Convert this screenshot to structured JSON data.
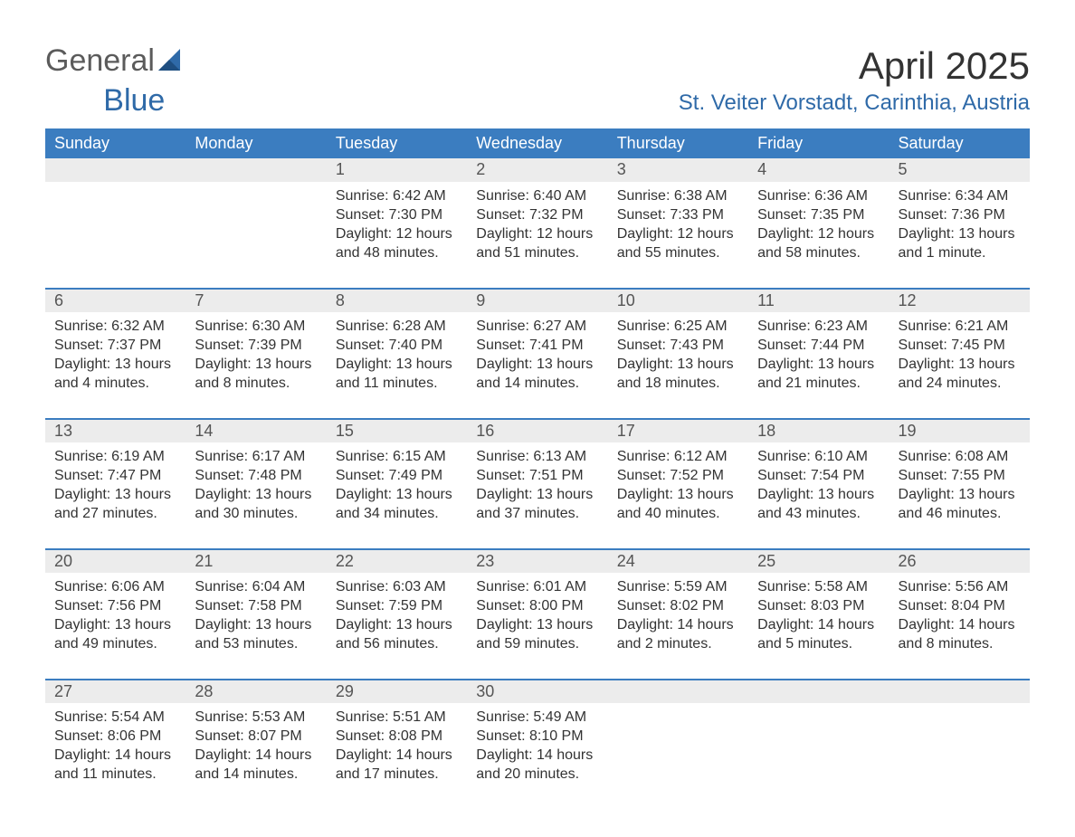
{
  "brand": {
    "word1": "General",
    "word2": "Blue"
  },
  "title": "April 2025",
  "location": "St. Veiter Vorstadt, Carinthia, Austria",
  "colors": {
    "header_bg": "#3b7dc0",
    "header_text": "#ffffff",
    "daynum_bg": "#ececec",
    "accent": "#2f6aa8",
    "text": "#333333"
  },
  "day_headers": [
    "Sunday",
    "Monday",
    "Tuesday",
    "Wednesday",
    "Thursday",
    "Friday",
    "Saturday"
  ],
  "weeks": [
    {
      "nums": [
        "",
        "",
        "1",
        "2",
        "3",
        "4",
        "5"
      ],
      "sunrise": [
        "",
        "",
        "Sunrise: 6:42 AM",
        "Sunrise: 6:40 AM",
        "Sunrise: 6:38 AM",
        "Sunrise: 6:36 AM",
        "Sunrise: 6:34 AM"
      ],
      "sunset": [
        "",
        "",
        "Sunset: 7:30 PM",
        "Sunset: 7:32 PM",
        "Sunset: 7:33 PM",
        "Sunset: 7:35 PM",
        "Sunset: 7:36 PM"
      ],
      "day1": [
        "",
        "",
        "Daylight: 12 hours",
        "Daylight: 12 hours",
        "Daylight: 12 hours",
        "Daylight: 12 hours",
        "Daylight: 13 hours"
      ],
      "day2": [
        "",
        "",
        "and 48 minutes.",
        "and 51 minutes.",
        "and 55 minutes.",
        "and 58 minutes.",
        "and 1 minute."
      ]
    },
    {
      "nums": [
        "6",
        "7",
        "8",
        "9",
        "10",
        "11",
        "12"
      ],
      "sunrise": [
        "Sunrise: 6:32 AM",
        "Sunrise: 6:30 AM",
        "Sunrise: 6:28 AM",
        "Sunrise: 6:27 AM",
        "Sunrise: 6:25 AM",
        "Sunrise: 6:23 AM",
        "Sunrise: 6:21 AM"
      ],
      "sunset": [
        "Sunset: 7:37 PM",
        "Sunset: 7:39 PM",
        "Sunset: 7:40 PM",
        "Sunset: 7:41 PM",
        "Sunset: 7:43 PM",
        "Sunset: 7:44 PM",
        "Sunset: 7:45 PM"
      ],
      "day1": [
        "Daylight: 13 hours",
        "Daylight: 13 hours",
        "Daylight: 13 hours",
        "Daylight: 13 hours",
        "Daylight: 13 hours",
        "Daylight: 13 hours",
        "Daylight: 13 hours"
      ],
      "day2": [
        "and 4 minutes.",
        "and 8 minutes.",
        "and 11 minutes.",
        "and 14 minutes.",
        "and 18 minutes.",
        "and 21 minutes.",
        "and 24 minutes."
      ]
    },
    {
      "nums": [
        "13",
        "14",
        "15",
        "16",
        "17",
        "18",
        "19"
      ],
      "sunrise": [
        "Sunrise: 6:19 AM",
        "Sunrise: 6:17 AM",
        "Sunrise: 6:15 AM",
        "Sunrise: 6:13 AM",
        "Sunrise: 6:12 AM",
        "Sunrise: 6:10 AM",
        "Sunrise: 6:08 AM"
      ],
      "sunset": [
        "Sunset: 7:47 PM",
        "Sunset: 7:48 PM",
        "Sunset: 7:49 PM",
        "Sunset: 7:51 PM",
        "Sunset: 7:52 PM",
        "Sunset: 7:54 PM",
        "Sunset: 7:55 PM"
      ],
      "day1": [
        "Daylight: 13 hours",
        "Daylight: 13 hours",
        "Daylight: 13 hours",
        "Daylight: 13 hours",
        "Daylight: 13 hours",
        "Daylight: 13 hours",
        "Daylight: 13 hours"
      ],
      "day2": [
        "and 27 minutes.",
        "and 30 minutes.",
        "and 34 minutes.",
        "and 37 minutes.",
        "and 40 minutes.",
        "and 43 minutes.",
        "and 46 minutes."
      ]
    },
    {
      "nums": [
        "20",
        "21",
        "22",
        "23",
        "24",
        "25",
        "26"
      ],
      "sunrise": [
        "Sunrise: 6:06 AM",
        "Sunrise: 6:04 AM",
        "Sunrise: 6:03 AM",
        "Sunrise: 6:01 AM",
        "Sunrise: 5:59 AM",
        "Sunrise: 5:58 AM",
        "Sunrise: 5:56 AM"
      ],
      "sunset": [
        "Sunset: 7:56 PM",
        "Sunset: 7:58 PM",
        "Sunset: 7:59 PM",
        "Sunset: 8:00 PM",
        "Sunset: 8:02 PM",
        "Sunset: 8:03 PM",
        "Sunset: 8:04 PM"
      ],
      "day1": [
        "Daylight: 13 hours",
        "Daylight: 13 hours",
        "Daylight: 13 hours",
        "Daylight: 13 hours",
        "Daylight: 14 hours",
        "Daylight: 14 hours",
        "Daylight: 14 hours"
      ],
      "day2": [
        "and 49 minutes.",
        "and 53 minutes.",
        "and 56 minutes.",
        "and 59 minutes.",
        "and 2 minutes.",
        "and 5 minutes.",
        "and 8 minutes."
      ]
    },
    {
      "nums": [
        "27",
        "28",
        "29",
        "30",
        "",
        "",
        ""
      ],
      "sunrise": [
        "Sunrise: 5:54 AM",
        "Sunrise: 5:53 AM",
        "Sunrise: 5:51 AM",
        "Sunrise: 5:49 AM",
        "",
        "",
        ""
      ],
      "sunset": [
        "Sunset: 8:06 PM",
        "Sunset: 8:07 PM",
        "Sunset: 8:08 PM",
        "Sunset: 8:10 PM",
        "",
        "",
        ""
      ],
      "day1": [
        "Daylight: 14 hours",
        "Daylight: 14 hours",
        "Daylight: 14 hours",
        "Daylight: 14 hours",
        "",
        "",
        ""
      ],
      "day2": [
        "and 11 minutes.",
        "and 14 minutes.",
        "and 17 minutes.",
        "and 20 minutes.",
        "",
        "",
        ""
      ]
    }
  ]
}
